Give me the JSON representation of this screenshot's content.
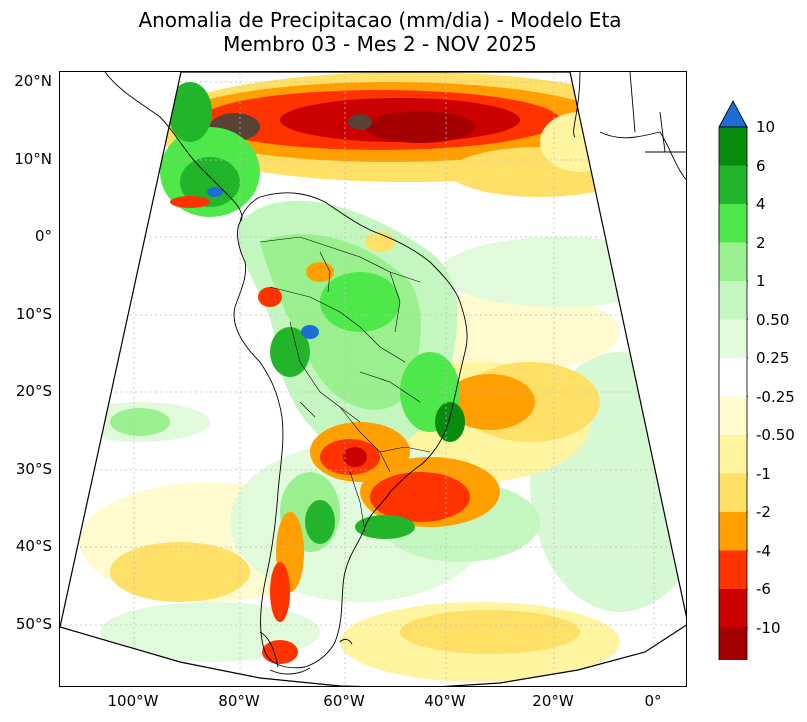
{
  "title_line1": "Anomalia de Precipitacao (mm/dia) - Modelo Eta",
  "title_line2": "Membro 03 - Mes 2 - NOV 2025",
  "lat_labels": [
    "20°N",
    "10°N",
    "0°",
    "10°S",
    "20°S",
    "30°S",
    "40°S",
    "50°S"
  ],
  "lon_labels": [
    "100°W",
    "80°W",
    "60°W",
    "40°W",
    "20°W",
    "0°"
  ],
  "colorbar": {
    "labels": [
      "10",
      "6",
      "4",
      "2",
      "1",
      "0.50",
      "0.25",
      "-0.25",
      "-0.50",
      "-1",
      "-2",
      "-4",
      "-6",
      "-10"
    ],
    "colors": [
      "#5a4136",
      "#a50000",
      "#cc0000",
      "#ff3300",
      "#ff9f00",
      "#ffe066",
      "#fff5a0",
      "#fffbcf",
      "#ffffff",
      "#e2fadc",
      "#c4f7c0",
      "#9af08f",
      "#4ee84a",
      "#22b52b",
      "#078c0d",
      "#1d6dd6"
    ],
    "under_color": "#5a4136",
    "over_color": "#1d6dd6"
  }
}
